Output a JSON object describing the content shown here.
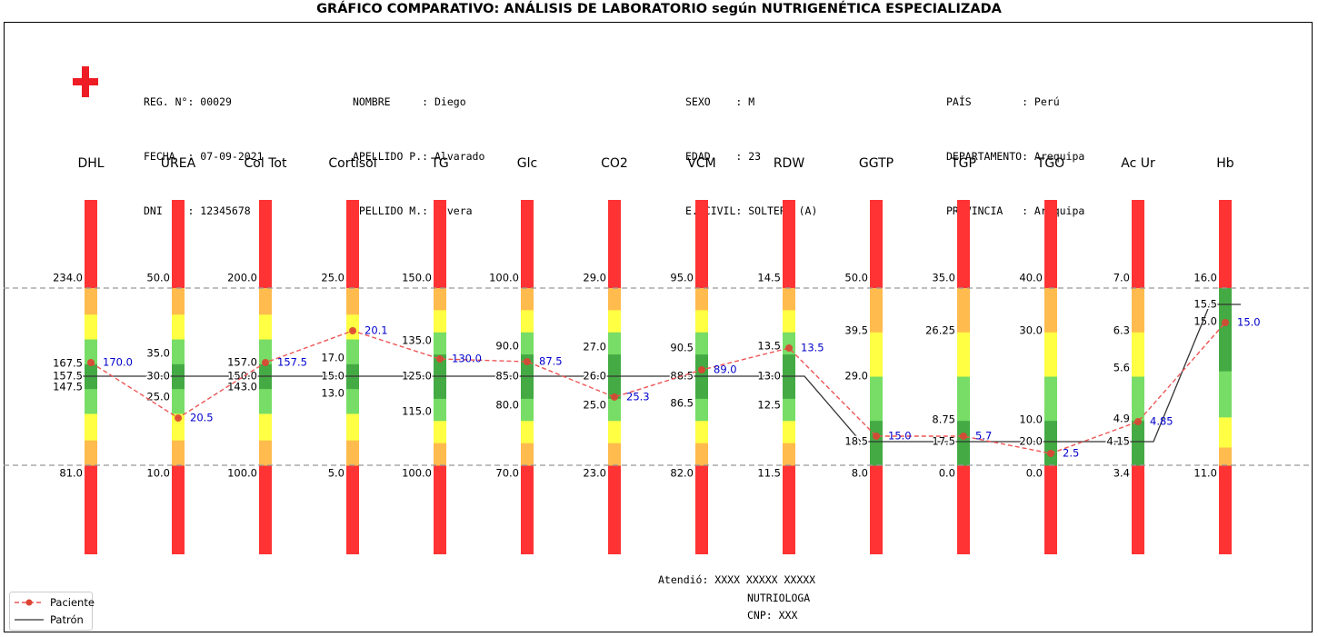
{
  "title": "GRÁFICO COMPARATIVO: ANÁLISIS DE LABORATORIO según NUTRIGENÉTICA ESPECIALIZADA",
  "header": {
    "reg": "REG. N°: 00029",
    "fecha": "FECHA  : 07-09-2021",
    "dni": "DNI    : 12345678",
    "nombre": "NOMBRE     : Diego",
    "apellido_p": "APELLIDO P.: Alvarado",
    "apellido_m": "APELLIDO M.: Rivera",
    "sexo": "SEXO    : M",
    "edad": "EDAD    : 23",
    "civil": "E. CIVIL: SOLTERO (A)",
    "pais": "PAÍS        : Perú",
    "departamento": "DEPARTAMENTO: Arequipa",
    "provincia": "PROVINCIA   : Arequipa"
  },
  "footer": {
    "atendio": "Atendió: XXXX XXXXX XXXXX",
    "rol": "NUTRIOLOGA",
    "cnp": "CNP: XXX"
  },
  "icon": "red-cross-icon",
  "legend": {
    "paciente": "Paciente",
    "patron": "Patrón"
  },
  "colors": {
    "red": "#ff3333",
    "orange": "#ffbb4d",
    "yellow": "#ffff44",
    "lightgreen": "#77dd66",
    "green": "#44aa44",
    "patient": "#ee5555",
    "patient_label": "#0000cc",
    "pattern": "#333333"
  },
  "chart_data": {
    "type": "line",
    "x_labels": [
      "DHL",
      "UREA",
      "Col Tot",
      "Cortisol",
      "TG",
      "Glc",
      "CO2",
      "VCM",
      "RDW",
      "GGTP",
      "TGP",
      "TGO",
      "Ac Ur",
      "Hb"
    ],
    "max_labels": [
      "234.0",
      "50.0",
      "200.0",
      "25.0",
      "150.0",
      "100.0",
      "29.0",
      "95.0",
      "14.5",
      "50.0",
      "35.0",
      "40.0",
      "7.0",
      "16.0"
    ],
    "min_labels": [
      "81.0",
      "10.0",
      "100.0",
      "5.0",
      "100.0",
      "70.0",
      "23.0",
      "82.0",
      "11.5",
      "8.0",
      "0.0",
      "0.0",
      "3.4",
      "11.0"
    ],
    "optimal": [
      "157.5",
      "30.0",
      "150.0",
      "15.0",
      "125.0",
      "85.0",
      "26.0",
      "88.5",
      "13.0",
      "18.5",
      "17.5",
      "20.0",
      "4.15",
      "15.5"
    ],
    "patient_values": [
      "170.0",
      "20.5",
      "157.5",
      "20.1",
      "130.0",
      "87.5",
      "25.3",
      "89.0",
      "13.5",
      "15.0",
      "5.7",
      "2.5",
      "4.85",
      "15.0"
    ],
    "range_labels": [
      [
        "167.5",
        "147.5"
      ],
      [
        "35.0",
        "25.0"
      ],
      [
        "157.0",
        "143.0"
      ],
      [
        "17.0",
        "13.0"
      ],
      [
        "135.0",
        "115.0"
      ],
      [
        "90.0",
        "80.0"
      ],
      [
        "27.0",
        "25.0"
      ],
      [
        "90.5",
        "86.5"
      ],
      [
        "13.5",
        "12.5"
      ],
      [
        "39.5",
        "29.0"
      ],
      [
        "26.25",
        "8.75"
      ],
      [
        "30.0",
        "10.0"
      ],
      [
        "6.3",
        "5.6",
        "4.9"
      ],
      [
        "15.0"
      ]
    ],
    "series": [
      {
        "name": "Paciente",
        "values": [
          170.0,
          20.5,
          157.5,
          20.1,
          130.0,
          87.5,
          25.3,
          89.0,
          13.5,
          15.0,
          5.7,
          2.5,
          4.85,
          15.0
        ]
      },
      {
        "name": "Patrón",
        "values": [
          157.5,
          30.0,
          150.0,
          15.0,
          125.0,
          85.0,
          26.0,
          88.5,
          13.0,
          18.5,
          17.5,
          20.0,
          4.15,
          15.5
        ]
      }
    ]
  }
}
